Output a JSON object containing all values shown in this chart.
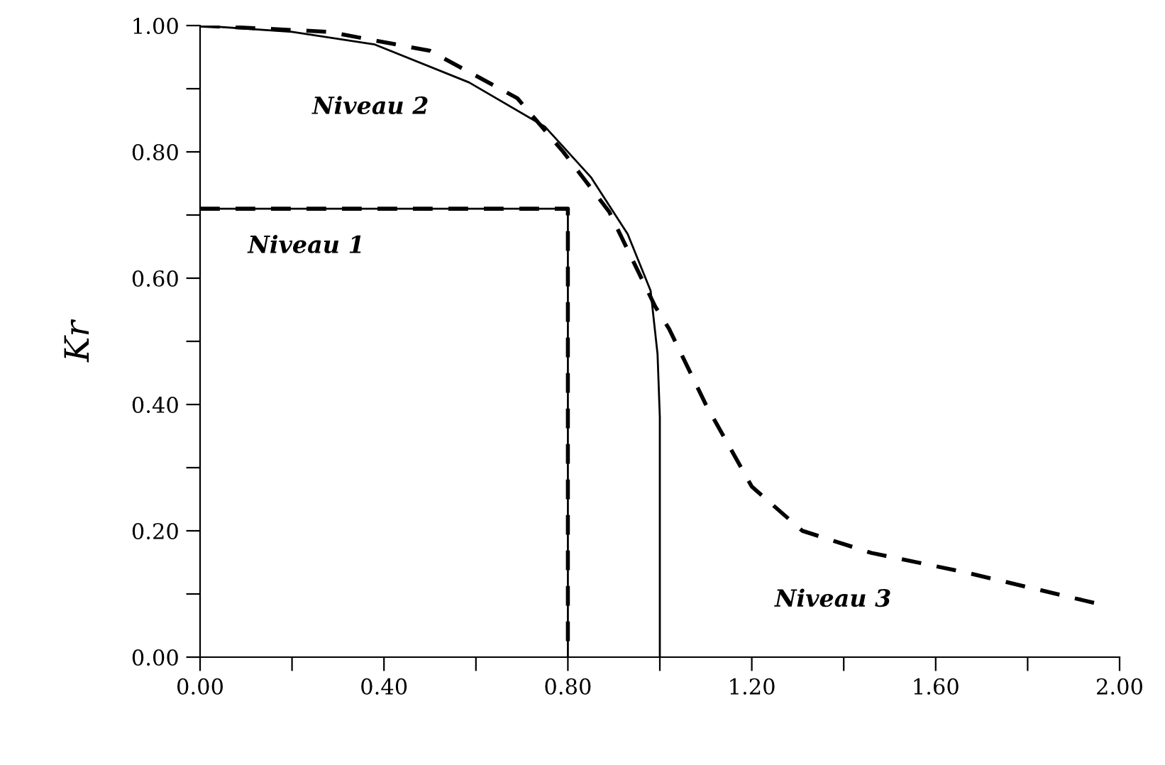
{
  "chart_data": {
    "type": "line",
    "ylabel": "Kr",
    "xlim": [
      0,
      2.0
    ],
    "ylim": [
      0,
      1.0
    ],
    "xticks": [
      {
        "value": 0,
        "label": "0.00"
      },
      {
        "value": 0.2,
        "label": null
      },
      {
        "value": 0.4,
        "label": "0.40"
      },
      {
        "value": 0.6,
        "label": null
      },
      {
        "value": 0.8,
        "label": "0.80"
      },
      {
        "value": 1.0,
        "label": null
      },
      {
        "value": 1.2,
        "label": "1.20"
      },
      {
        "value": 1.4,
        "label": null
      },
      {
        "value": 1.6,
        "label": "1.60"
      },
      {
        "value": 1.8,
        "label": null
      },
      {
        "value": 2.0,
        "label": "2.00"
      }
    ],
    "yticks": [
      {
        "value": 0,
        "label": "0.00"
      },
      {
        "value": 0.1,
        "label": null
      },
      {
        "value": 0.2,
        "label": "0.20"
      },
      {
        "value": 0.3,
        "label": null
      },
      {
        "value": 0.4,
        "label": "0.40"
      },
      {
        "value": 0.5,
        "label": null
      },
      {
        "value": 0.6,
        "label": "0.60"
      },
      {
        "value": 0.7,
        "label": null
      },
      {
        "value": 0.8,
        "label": "0.80"
      },
      {
        "value": 0.9,
        "label": null
      },
      {
        "value": 1.0,
        "label": "1.00"
      }
    ],
    "grid": false,
    "marker": "none",
    "series": [
      {
        "color": "#000000",
        "line_style": "solid",
        "x": [
          0,
          0.8,
          0.8
        ],
        "values": [
          0.71,
          0.71,
          0
        ]
      },
      {
        "color": "#000000",
        "line_style": "dashed",
        "x": [
          0,
          0.8,
          0.8
        ],
        "values": [
          0.71,
          0.71,
          0
        ]
      },
      {
        "color": "#000000",
        "line_style": "solid",
        "x": [
          0,
          0.2,
          0.38,
          0.585,
          0.75,
          0.85,
          0.93,
          0.98,
          0.995,
          1.0,
          1.0
        ],
        "values": [
          1.0,
          0.99,
          0.97,
          0.91,
          0.84,
          0.76,
          0.67,
          0.58,
          0.48,
          0.38,
          0
        ]
      },
      {
        "color": "#000000",
        "line_style": "dashed",
        "x": [
          0,
          0.28,
          0.5,
          0.69,
          0.79,
          0.89,
          0.99,
          1.02,
          1.1,
          1.2,
          1.31,
          1.46,
          1.66,
          1.95
        ],
        "values": [
          1.0,
          0.99,
          0.96,
          0.885,
          0.8,
          0.705,
          0.555,
          0.52,
          0.4,
          0.27,
          0.2,
          0.165,
          0.135,
          0.085
        ]
      }
    ],
    "annotations": [
      "Niveau 2",
      "Niveau 1",
      "Niveau 3"
    ]
  }
}
